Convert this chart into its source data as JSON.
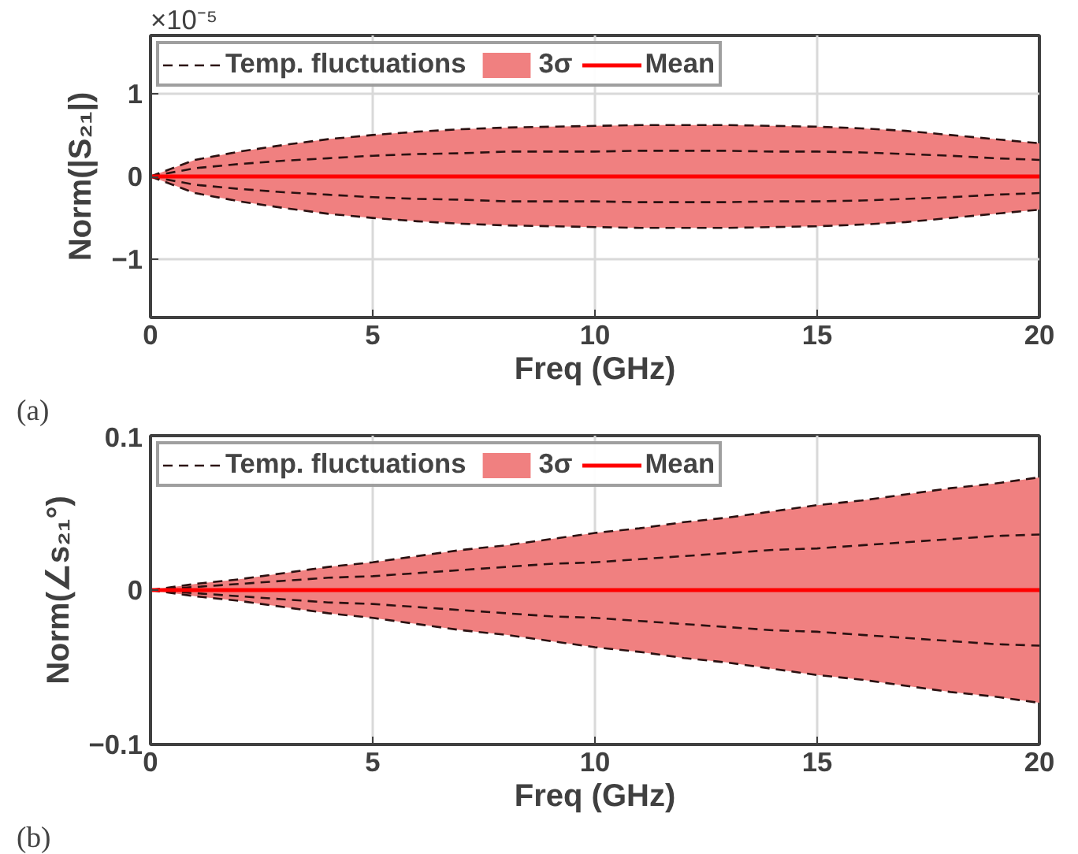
{
  "chart_data": [
    {
      "type": "line",
      "xlabel": "Freq (GHz)",
      "ylabel": "Norm(|S₂₁|)",
      "annotations": [
        "×10⁻⁵",
        "(a)"
      ],
      "x": [
        0,
        1,
        2,
        3,
        4,
        5,
        6,
        7,
        8,
        9,
        10,
        11,
        12,
        13,
        14,
        15,
        16,
        17,
        18,
        19,
        20
      ],
      "xlim": [
        0,
        20
      ],
      "xticks": [
        0,
        5,
        10,
        15,
        20
      ],
      "ylim": [
        -1.7,
        1.7
      ],
      "yticks": [
        -1,
        0,
        1
      ],
      "grid": true,
      "legend": "top left",
      "series": [
        {
          "name": "Temp. fluctuations",
          "line_style": "dashed",
          "color": "#2b1111",
          "values": [
            0,
            0.2,
            0.3,
            0.38,
            0.45,
            0.5,
            0.54,
            0.57,
            0.59,
            0.6,
            0.61,
            0.62,
            0.62,
            0.62,
            0.61,
            0.6,
            0.58,
            0.55,
            0.5,
            0.45,
            0.4
          ]
        },
        {
          "line_style": "dashed",
          "color": "#2b1111",
          "values": [
            0,
            -0.2,
            -0.3,
            -0.38,
            -0.45,
            -0.5,
            -0.54,
            -0.57,
            -0.59,
            -0.6,
            -0.61,
            -0.62,
            -0.62,
            -0.62,
            -0.61,
            -0.6,
            -0.58,
            -0.55,
            -0.5,
            -0.45,
            -0.4
          ]
        },
        {
          "line_style": "dashed",
          "color": "#2b1111",
          "values": [
            0,
            0.1,
            0.15,
            0.19,
            0.22,
            0.25,
            0.27,
            0.28,
            0.3,
            0.3,
            0.3,
            0.31,
            0.31,
            0.31,
            0.3,
            0.3,
            0.29,
            0.27,
            0.25,
            0.22,
            0.2
          ]
        },
        {
          "line_style": "dashed",
          "color": "#2b1111",
          "values": [
            0,
            -0.1,
            -0.15,
            -0.19,
            -0.22,
            -0.25,
            -0.27,
            -0.28,
            -0.3,
            -0.3,
            -0.3,
            -0.31,
            -0.31,
            -0.31,
            -0.3,
            -0.3,
            -0.29,
            -0.27,
            -0.25,
            -0.22,
            -0.2
          ]
        },
        {
          "name": "3σ",
          "color": "#f08080",
          "values": [
            0,
            0,
            0,
            0,
            0,
            0,
            0,
            0,
            0,
            0,
            0,
            0,
            0,
            0,
            0,
            0,
            0,
            0,
            0,
            0,
            0
          ],
          "lower": [
            0,
            -0.2,
            -0.3,
            -0.38,
            -0.45,
            -0.5,
            -0.54,
            -0.57,
            -0.59,
            -0.6,
            -0.61,
            -0.62,
            -0.62,
            -0.62,
            -0.61,
            -0.6,
            -0.58,
            -0.55,
            -0.5,
            -0.45,
            -0.4
          ],
          "upper": [
            0,
            0.2,
            0.3,
            0.38,
            0.45,
            0.5,
            0.54,
            0.57,
            0.59,
            0.6,
            0.61,
            0.62,
            0.62,
            0.62,
            0.61,
            0.6,
            0.58,
            0.55,
            0.5,
            0.45,
            0.4
          ]
        },
        {
          "name": "Mean",
          "line_style": "solid",
          "color": "#ff0000",
          "values": [
            0,
            0,
            0,
            0,
            0,
            0,
            0,
            0,
            0,
            0,
            0,
            0,
            0,
            0,
            0,
            0,
            0,
            0,
            0,
            0,
            0
          ]
        }
      ]
    },
    {
      "type": "line",
      "xlabel": "Freq (GHz)",
      "ylabel": "Norm(∠s₂₁°)",
      "annotations": [
        "(b)"
      ],
      "x": [
        0,
        1,
        2,
        3,
        4,
        5,
        6,
        7,
        8,
        9,
        10,
        11,
        12,
        13,
        14,
        15,
        16,
        17,
        18,
        19,
        20
      ],
      "xlim": [
        0,
        20
      ],
      "xticks": [
        0,
        5,
        10,
        15,
        20
      ],
      "ylim": [
        -0.1,
        0.1
      ],
      "yticks": [
        -0.1,
        0,
        0.1
      ],
      "grid": true,
      "legend": "top left",
      "series": [
        {
          "name": "Temp. fluctuations",
          "line_style": "dashed",
          "color": "#2b1111",
          "values": [
            0,
            0.004,
            0.007,
            0.011,
            0.015,
            0.018,
            0.022,
            0.026,
            0.029,
            0.033,
            0.037,
            0.04,
            0.044,
            0.047,
            0.051,
            0.055,
            0.058,
            0.062,
            0.066,
            0.069,
            0.073
          ]
        },
        {
          "line_style": "dashed",
          "color": "#2b1111",
          "values": [
            0,
            -0.004,
            -0.007,
            -0.011,
            -0.015,
            -0.018,
            -0.022,
            -0.026,
            -0.029,
            -0.033,
            -0.037,
            -0.04,
            -0.044,
            -0.047,
            -0.051,
            -0.055,
            -0.058,
            -0.062,
            -0.066,
            -0.069,
            -0.073
          ]
        },
        {
          "line_style": "dashed",
          "color": "#2b1111",
          "values": [
            0,
            0.002,
            0.004,
            0.006,
            0.008,
            0.009,
            0.011,
            0.013,
            0.015,
            0.017,
            0.018,
            0.02,
            0.022,
            0.024,
            0.026,
            0.027,
            0.029,
            0.031,
            0.033,
            0.035,
            0.036
          ]
        },
        {
          "line_style": "dashed",
          "color": "#2b1111",
          "values": [
            0,
            -0.002,
            -0.004,
            -0.006,
            -0.008,
            -0.009,
            -0.011,
            -0.013,
            -0.015,
            -0.017,
            -0.018,
            -0.02,
            -0.022,
            -0.024,
            -0.026,
            -0.027,
            -0.029,
            -0.031,
            -0.033,
            -0.035,
            -0.036
          ]
        },
        {
          "name": "3σ",
          "color": "#f08080",
          "values": [
            0,
            0,
            0,
            0,
            0,
            0,
            0,
            0,
            0,
            0,
            0,
            0,
            0,
            0,
            0,
            0,
            0,
            0,
            0,
            0,
            0
          ],
          "lower": [
            0,
            -0.004,
            -0.007,
            -0.011,
            -0.015,
            -0.018,
            -0.022,
            -0.026,
            -0.029,
            -0.033,
            -0.037,
            -0.04,
            -0.044,
            -0.047,
            -0.051,
            -0.055,
            -0.058,
            -0.062,
            -0.066,
            -0.069,
            -0.073
          ],
          "upper": [
            0,
            0.004,
            0.007,
            0.011,
            0.015,
            0.018,
            0.022,
            0.026,
            0.029,
            0.033,
            0.037,
            0.04,
            0.044,
            0.047,
            0.051,
            0.055,
            0.058,
            0.062,
            0.066,
            0.069,
            0.073
          ]
        },
        {
          "name": "Mean",
          "line_style": "solid",
          "color": "#ff0000",
          "values": [
            0,
            0,
            0,
            0,
            0,
            0,
            0,
            0,
            0,
            0,
            0,
            0,
            0,
            0,
            0,
            0,
            0,
            0,
            0,
            0,
            0
          ]
        }
      ]
    }
  ]
}
